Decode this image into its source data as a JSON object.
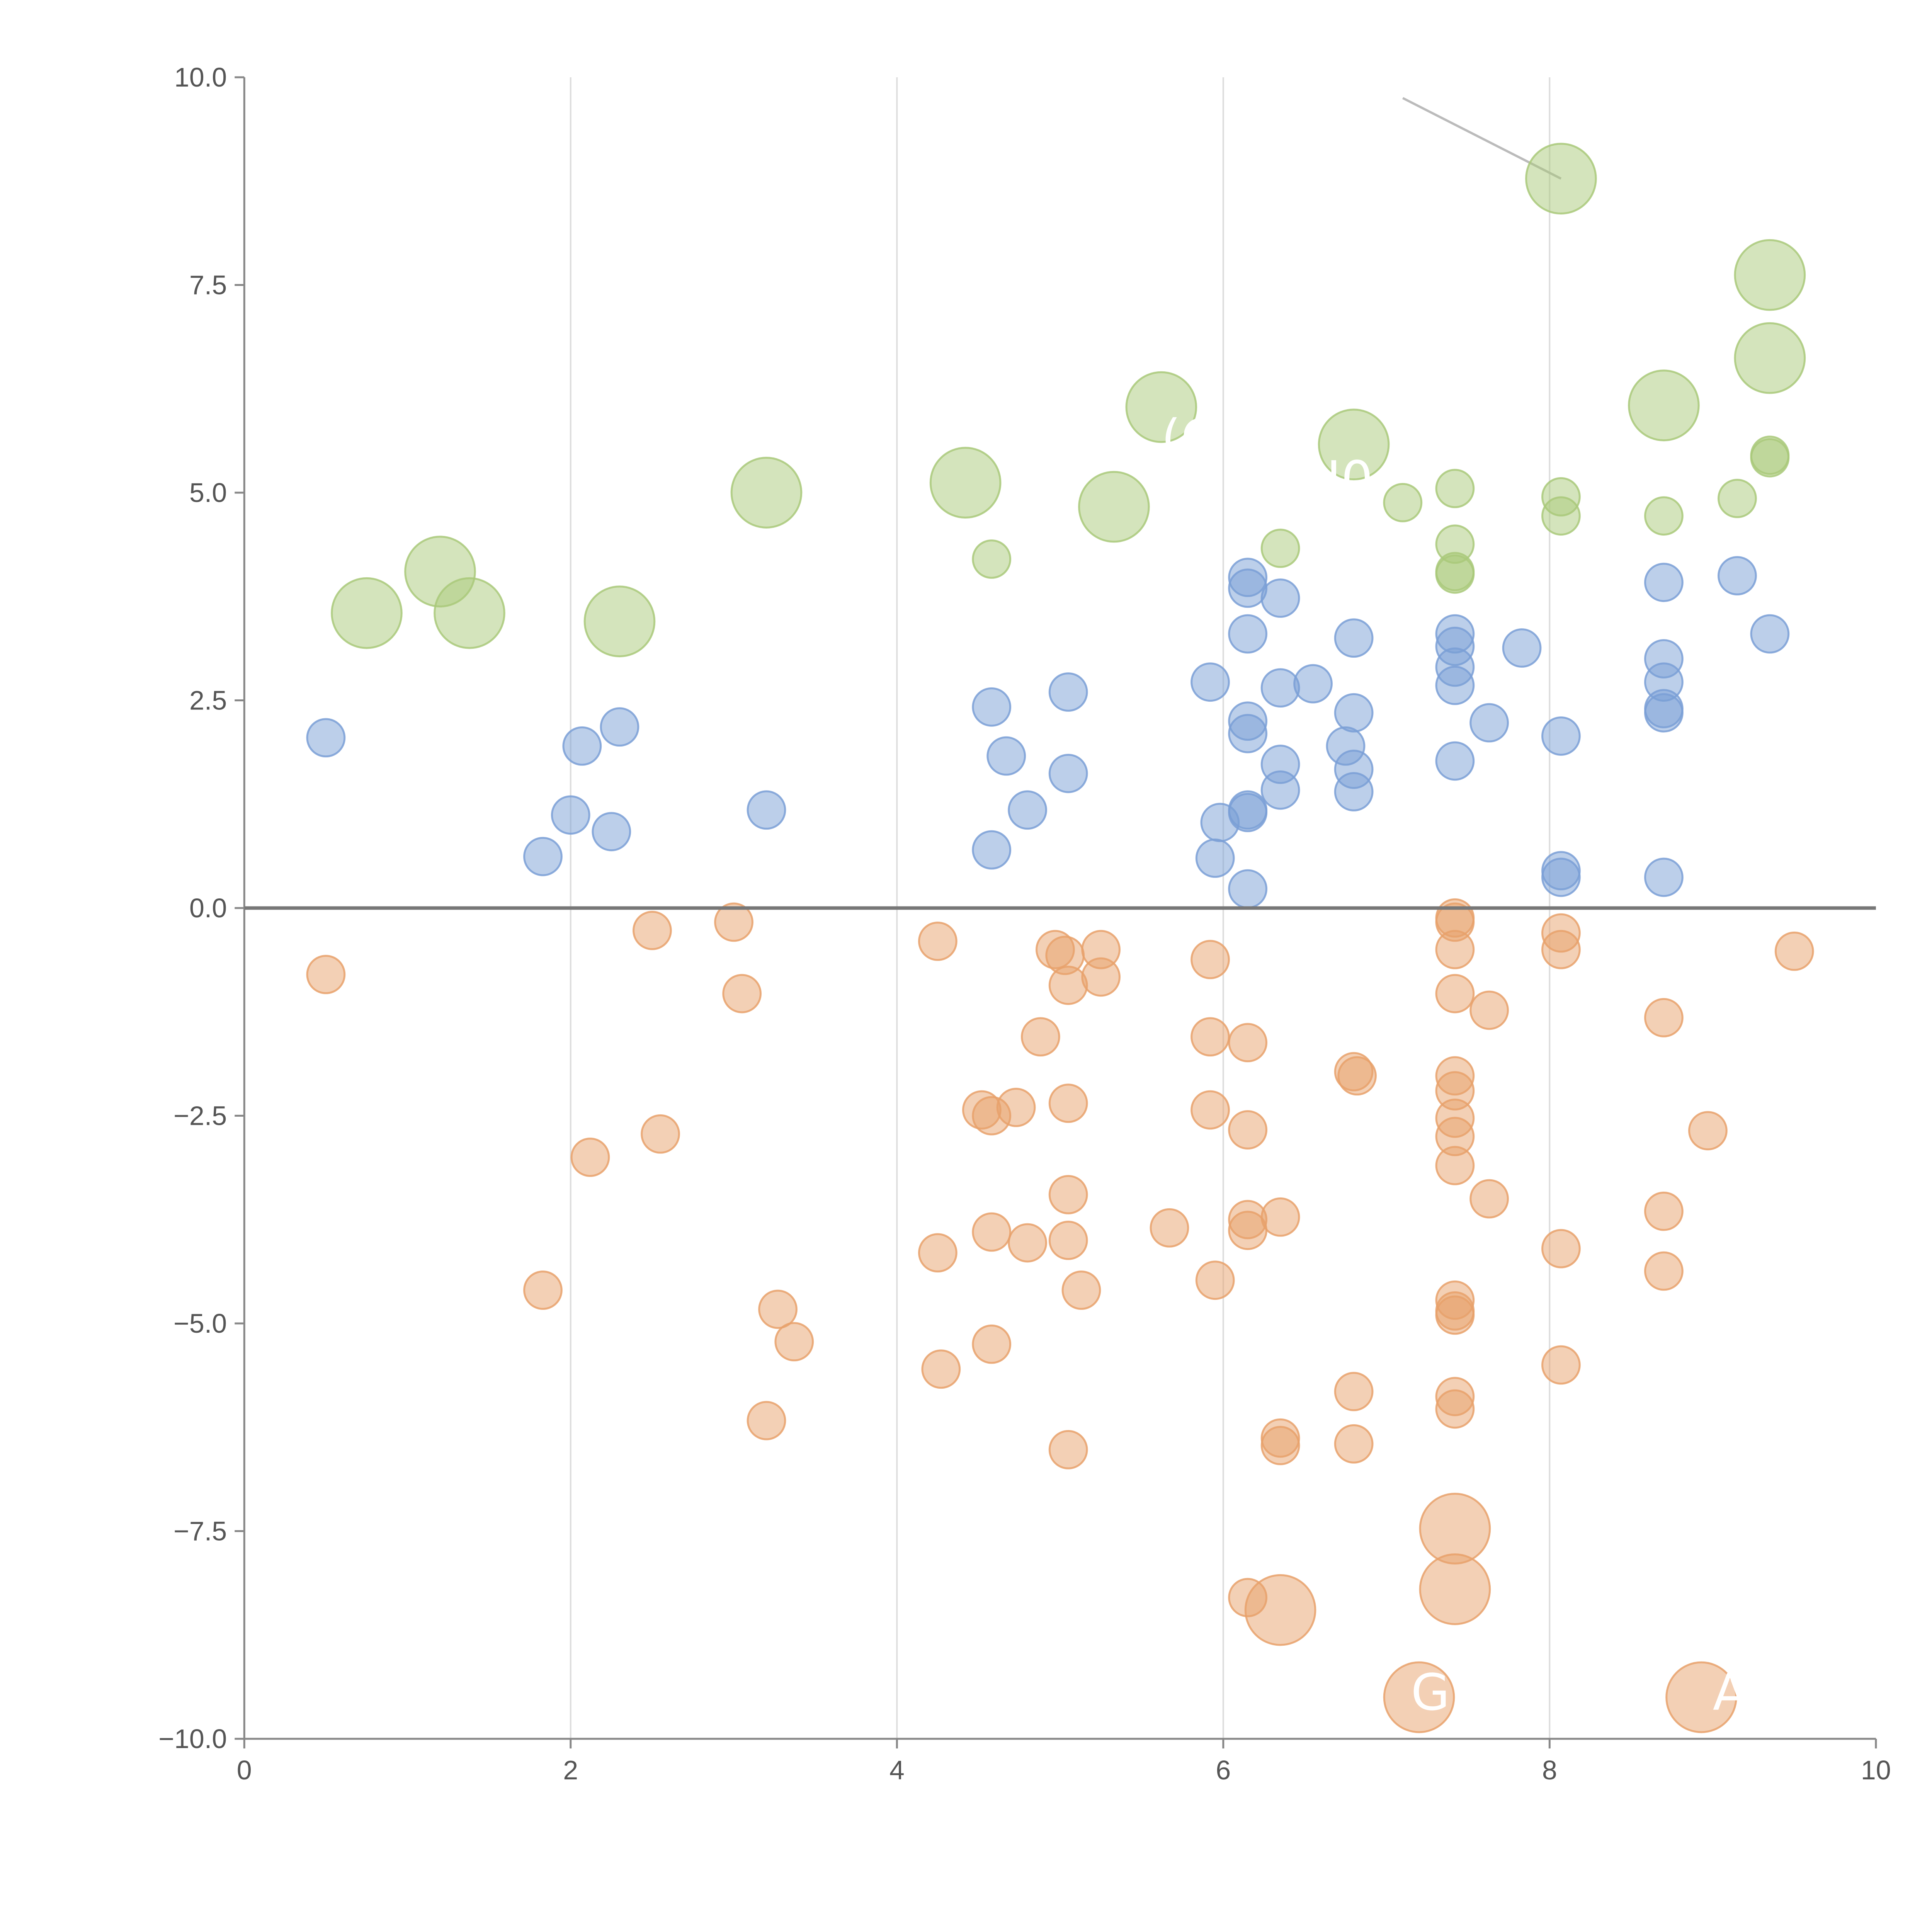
{
  "chart_data": {
    "type": "scatter",
    "title": "",
    "xlabel": "",
    "ylabel": "",
    "xlim": [
      0,
      10
    ],
    "ylim": [
      -10,
      10
    ],
    "x_ticks": [
      "0",
      "2",
      "4",
      "6",
      "8",
      "10"
    ],
    "y_ticks": [
      "−10.0",
      "−7.5",
      "−5.0",
      "−2.5",
      "0.0",
      "2.5",
      "5.0",
      "7.5",
      "10.0"
    ],
    "grid": "vertical",
    "zero_line": true,
    "colors": {
      "green": "#a9c97a",
      "blue": "#7a9fd6",
      "orange": "#e8a16b",
      "axis": "#888888",
      "grid": "#dddddd",
      "zero_line": "#777777",
      "leader": "#bbbbbb"
    },
    "series": [
      {
        "color": "green",
        "points": [
          {
            "x": 0.75,
            "y": 3.55,
            "size": "large"
          },
          {
            "x": 1.2,
            "y": 4.05,
            "size": "large"
          },
          {
            "x": 1.38,
            "y": 3.55,
            "size": "large"
          },
          {
            "x": 2.3,
            "y": 3.45,
            "size": "large"
          },
          {
            "x": 3.2,
            "y": 5.0,
            "size": "large"
          },
          {
            "x": 4.42,
            "y": 5.12,
            "size": "large"
          },
          {
            "x": 4.58,
            "y": 4.2,
            "size": "small"
          },
          {
            "x": 5.33,
            "y": 4.83,
            "size": "large"
          },
          {
            "x": 5.62,
            "y": 6.03,
            "size": "large"
          },
          {
            "x": 6.35,
            "y": 4.33,
            "size": "small"
          },
          {
            "x": 6.8,
            "y": 5.58,
            "size": "large"
          },
          {
            "x": 7.1,
            "y": 4.88,
            "size": "small"
          },
          {
            "x": 7.42,
            "y": 5.05,
            "size": "small"
          },
          {
            "x": 7.42,
            "y": 4.38,
            "size": "small"
          },
          {
            "x": 7.42,
            "y": 4.05,
            "size": "small"
          },
          {
            "x": 7.42,
            "y": 4.02,
            "size": "small"
          },
          {
            "x": 8.07,
            "y": 8.78,
            "size": "large"
          },
          {
            "x": 8.07,
            "y": 4.95,
            "size": "small"
          },
          {
            "x": 8.07,
            "y": 4.72,
            "size": "small"
          },
          {
            "x": 8.7,
            "y": 6.05,
            "size": "large"
          },
          {
            "x": 8.7,
            "y": 4.72,
            "size": "small"
          },
          {
            "x": 9.15,
            "y": 4.93,
            "size": "small"
          },
          {
            "x": 9.35,
            "y": 7.62,
            "size": "large"
          },
          {
            "x": 9.35,
            "y": 6.62,
            "size": "large"
          },
          {
            "x": 9.35,
            "y": 5.45,
            "size": "small"
          },
          {
            "x": 9.35,
            "y": 5.42,
            "size": "small"
          }
        ]
      },
      {
        "color": "blue",
        "points": [
          {
            "x": 0.5,
            "y": 2.05
          },
          {
            "x": 1.83,
            "y": 0.62
          },
          {
            "x": 2.0,
            "y": 1.12
          },
          {
            "x": 2.07,
            "y": 1.95
          },
          {
            "x": 2.25,
            "y": 0.92
          },
          {
            "x": 2.3,
            "y": 2.18
          },
          {
            "x": 3.2,
            "y": 1.18
          },
          {
            "x": 4.58,
            "y": 2.42
          },
          {
            "x": 4.58,
            "y": 0.7
          },
          {
            "x": 4.67,
            "y": 1.83
          },
          {
            "x": 4.8,
            "y": 1.18
          },
          {
            "x": 5.05,
            "y": 2.6
          },
          {
            "x": 5.05,
            "y": 1.62
          },
          {
            "x": 5.92,
            "y": 2.72
          },
          {
            "x": 5.95,
            "y": 0.6
          },
          {
            "x": 5.98,
            "y": 1.03
          },
          {
            "x": 6.15,
            "y": 3.98
          },
          {
            "x": 6.15,
            "y": 3.85
          },
          {
            "x": 6.15,
            "y": 3.3
          },
          {
            "x": 6.15,
            "y": 2.25
          },
          {
            "x": 6.15,
            "y": 2.1
          },
          {
            "x": 6.15,
            "y": 1.18
          },
          {
            "x": 6.15,
            "y": 1.15
          },
          {
            "x": 6.15,
            "y": 0.23
          },
          {
            "x": 6.35,
            "y": 3.73
          },
          {
            "x": 6.35,
            "y": 2.65
          },
          {
            "x": 6.35,
            "y": 1.73
          },
          {
            "x": 6.35,
            "y": 1.42
          },
          {
            "x": 6.55,
            "y": 2.7
          },
          {
            "x": 6.75,
            "y": 1.95
          },
          {
            "x": 6.8,
            "y": 3.25
          },
          {
            "x": 6.8,
            "y": 2.35
          },
          {
            "x": 6.8,
            "y": 1.67
          },
          {
            "x": 6.8,
            "y": 1.4
          },
          {
            "x": 7.42,
            "y": 3.3
          },
          {
            "x": 7.42,
            "y": 3.15
          },
          {
            "x": 7.42,
            "y": 2.9
          },
          {
            "x": 7.42,
            "y": 2.68
          },
          {
            "x": 7.42,
            "y": 1.77
          },
          {
            "x": 7.63,
            "y": 2.23
          },
          {
            "x": 7.83,
            "y": 3.13
          },
          {
            "x": 8.07,
            "y": 2.07
          },
          {
            "x": 8.07,
            "y": 0.45
          },
          {
            "x": 8.07,
            "y": 0.37
          },
          {
            "x": 8.7,
            "y": 3.92
          },
          {
            "x": 8.7,
            "y": 3.0
          },
          {
            "x": 8.7,
            "y": 2.72
          },
          {
            "x": 8.7,
            "y": 2.4
          },
          {
            "x": 8.7,
            "y": 2.35
          },
          {
            "x": 8.7,
            "y": 0.37
          },
          {
            "x": 9.15,
            "y": 4.0
          },
          {
            "x": 9.35,
            "y": 3.3
          }
        ]
      },
      {
        "color": "orange",
        "points": [
          {
            "x": 0.5,
            "y": -0.8,
            "size": "small"
          },
          {
            "x": 1.83,
            "y": -4.6,
            "size": "small"
          },
          {
            "x": 2.12,
            "y": -3.0,
            "size": "small"
          },
          {
            "x": 2.5,
            "y": -0.27,
            "size": "small"
          },
          {
            "x": 2.55,
            "y": -2.72,
            "size": "small"
          },
          {
            "x": 3.0,
            "y": -0.17,
            "size": "small"
          },
          {
            "x": 3.05,
            "y": -1.03,
            "size": "small"
          },
          {
            "x": 3.2,
            "y": -6.17,
            "size": "small"
          },
          {
            "x": 3.27,
            "y": -4.83,
            "size": "small"
          },
          {
            "x": 3.37,
            "y": -5.22,
            "size": "small"
          },
          {
            "x": 4.25,
            "y": -0.4,
            "size": "small"
          },
          {
            "x": 4.25,
            "y": -4.15,
            "size": "small"
          },
          {
            "x": 4.27,
            "y": -5.55,
            "size": "small"
          },
          {
            "x": 4.52,
            "y": -2.43,
            "size": "small"
          },
          {
            "x": 4.58,
            "y": -2.5,
            "size": "small"
          },
          {
            "x": 4.58,
            "y": -3.9,
            "size": "small"
          },
          {
            "x": 4.58,
            "y": -5.25,
            "size": "small"
          },
          {
            "x": 4.73,
            "y": -2.4,
            "size": "small"
          },
          {
            "x": 4.8,
            "y": -4.03,
            "size": "small"
          },
          {
            "x": 4.88,
            "y": -1.55,
            "size": "small"
          },
          {
            "x": 4.97,
            "y": -0.5,
            "size": "small"
          },
          {
            "x": 5.03,
            "y": -0.57,
            "size": "small"
          },
          {
            "x": 5.05,
            "y": -0.93,
            "size": "small"
          },
          {
            "x": 5.05,
            "y": -2.35,
            "size": "small"
          },
          {
            "x": 5.05,
            "y": -3.45,
            "size": "small"
          },
          {
            "x": 5.05,
            "y": -4.0,
            "size": "small"
          },
          {
            "x": 5.05,
            "y": -6.52,
            "size": "small"
          },
          {
            "x": 5.13,
            "y": -4.6,
            "size": "small"
          },
          {
            "x": 5.25,
            "y": -0.5,
            "size": "small"
          },
          {
            "x": 5.25,
            "y": -0.83,
            "size": "small"
          },
          {
            "x": 5.67,
            "y": -3.85,
            "size": "small"
          },
          {
            "x": 5.92,
            "y": -0.62,
            "size": "small"
          },
          {
            "x": 5.92,
            "y": -1.55,
            "size": "small"
          },
          {
            "x": 5.92,
            "y": -2.43,
            "size": "small"
          },
          {
            "x": 5.95,
            "y": -4.48,
            "size": "small"
          },
          {
            "x": 6.15,
            "y": -1.62,
            "size": "small"
          },
          {
            "x": 6.15,
            "y": -2.67,
            "size": "small"
          },
          {
            "x": 6.15,
            "y": -3.75,
            "size": "small"
          },
          {
            "x": 6.15,
            "y": -3.88,
            "size": "small"
          },
          {
            "x": 6.15,
            "y": -8.3,
            "size": "small"
          },
          {
            "x": 6.35,
            "y": -3.72,
            "size": "small"
          },
          {
            "x": 6.35,
            "y": -6.38,
            "size": "small"
          },
          {
            "x": 6.35,
            "y": -6.47,
            "size": "small"
          },
          {
            "x": 6.35,
            "y": -8.45,
            "size": "large"
          },
          {
            "x": 6.8,
            "y": -1.97,
            "size": "small"
          },
          {
            "x": 6.82,
            "y": -2.02,
            "size": "small"
          },
          {
            "x": 6.8,
            "y": -5.82,
            "size": "small"
          },
          {
            "x": 6.8,
            "y": -6.45,
            "size": "small"
          },
          {
            "x": 7.2,
            "y": -9.5,
            "size": "large"
          },
          {
            "x": 7.42,
            "y": -0.12,
            "size": "small"
          },
          {
            "x": 7.42,
            "y": -0.17,
            "size": "small"
          },
          {
            "x": 7.42,
            "y": -0.5,
            "size": "small"
          },
          {
            "x": 7.42,
            "y": -1.03,
            "size": "small"
          },
          {
            "x": 7.42,
            "y": -2.02,
            "size": "small"
          },
          {
            "x": 7.42,
            "y": -2.2,
            "size": "small"
          },
          {
            "x": 7.42,
            "y": -2.53,
            "size": "small"
          },
          {
            "x": 7.42,
            "y": -2.75,
            "size": "small"
          },
          {
            "x": 7.42,
            "y": -3.1,
            "size": "small"
          },
          {
            "x": 7.42,
            "y": -4.72,
            "size": "small"
          },
          {
            "x": 7.42,
            "y": -4.85,
            "size": "small"
          },
          {
            "x": 7.42,
            "y": -4.9,
            "size": "small"
          },
          {
            "x": 7.42,
            "y": -5.88,
            "size": "small"
          },
          {
            "x": 7.42,
            "y": -6.03,
            "size": "small"
          },
          {
            "x": 7.42,
            "y": -7.47,
            "size": "large"
          },
          {
            "x": 7.42,
            "y": -8.2,
            "size": "large"
          },
          {
            "x": 7.63,
            "y": -1.23,
            "size": "small"
          },
          {
            "x": 7.63,
            "y": -3.5,
            "size": "small"
          },
          {
            "x": 8.07,
            "y": -0.3,
            "size": "small"
          },
          {
            "x": 8.07,
            "y": -0.5,
            "size": "small"
          },
          {
            "x": 8.07,
            "y": -4.1,
            "size": "small"
          },
          {
            "x": 8.07,
            "y": -5.5,
            "size": "small"
          },
          {
            "x": 8.7,
            "y": -1.32,
            "size": "small"
          },
          {
            "x": 8.7,
            "y": -3.65,
            "size": "small"
          },
          {
            "x": 8.7,
            "y": -4.37,
            "size": "small"
          },
          {
            "x": 8.93,
            "y": -9.5,
            "size": "large"
          },
          {
            "x": 8.97,
            "y": -2.68,
            "size": "small"
          },
          {
            "x": 9.5,
            "y": -0.52,
            "size": "small"
          }
        ]
      }
    ],
    "annotations": [
      {
        "text": "(C",
        "x": 5.62,
        "y": 5.45
      },
      {
        "text": "04N0",
        "x": 6.1,
        "y": 4.95
      },
      {
        "text": "G",
        "x": 7.15,
        "y": -9.65
      },
      {
        "text": "A",
        "x": 9.0,
        "y": -9.65
      }
    ],
    "leader_line": {
      "x1": 7.1,
      "y1": 9.75,
      "x2": 8.07,
      "y2": 8.78
    }
  }
}
